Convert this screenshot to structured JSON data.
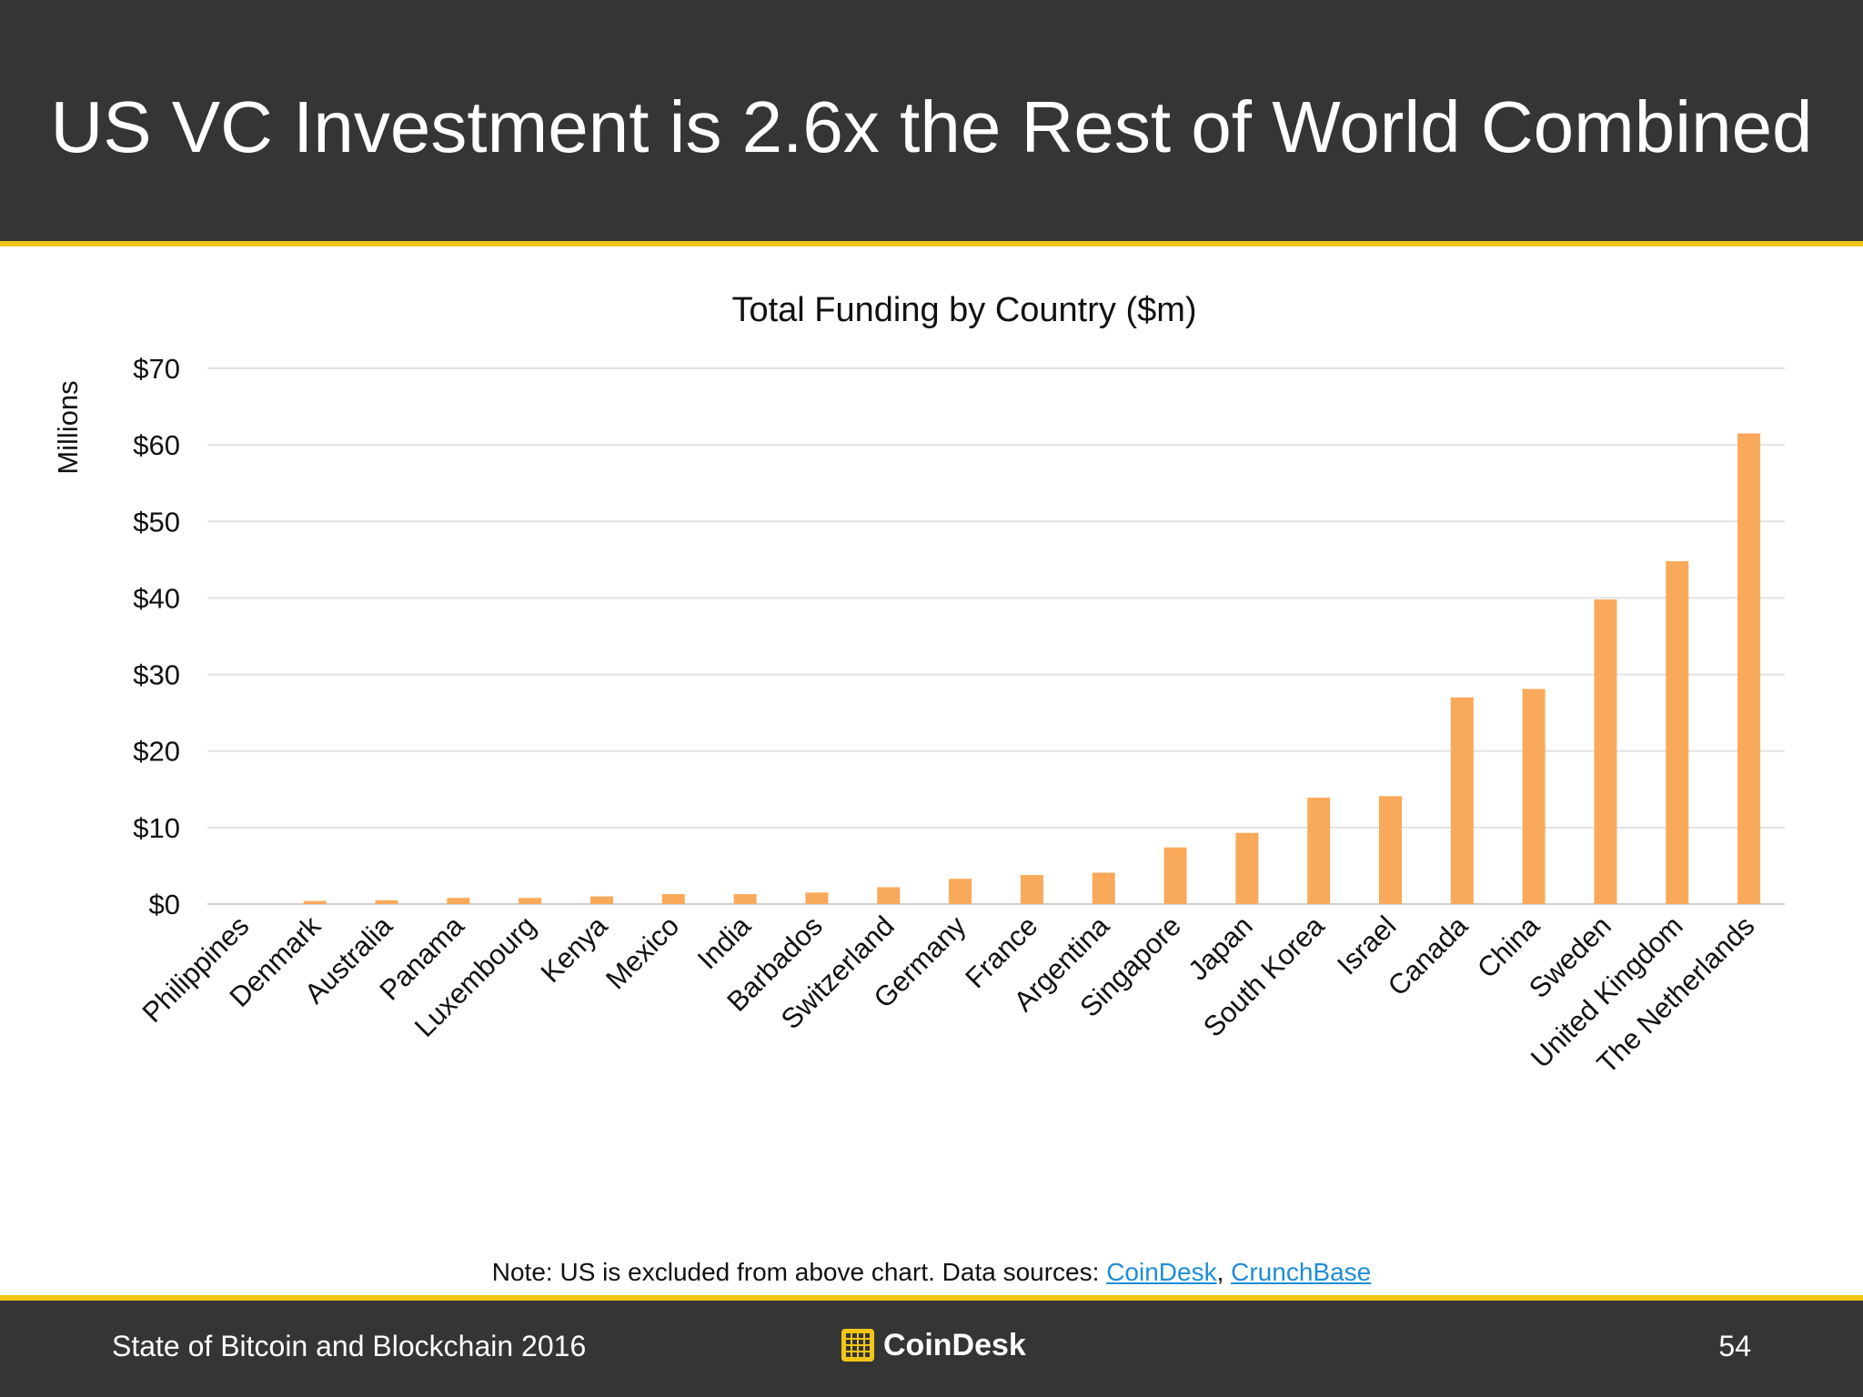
{
  "slide": {
    "title": "US VC Investment is 2.6x the Rest of World Combined"
  },
  "note": {
    "text": "Note: US is excluded from above chart. Data sources: ",
    "link1": "CoinDesk",
    "separator": ", ",
    "link2": "CrunchBase"
  },
  "footer": {
    "left": "State of Bitcoin and Blockchain 2016",
    "brand": "CoinDesk",
    "page": "54"
  },
  "colors": {
    "bar": "#f9a95a",
    "header": "#353535",
    "accent": "#f2c618",
    "link": "#1f8dd6"
  },
  "chart_data": {
    "type": "bar",
    "title": "Total Funding by Country ($m)",
    "ylabel": "Millions",
    "xlabel": "",
    "ylim": [
      0,
      70
    ],
    "yticks": [
      0,
      10,
      20,
      30,
      40,
      50,
      60,
      70
    ],
    "ytick_labels": [
      "$0",
      "$10",
      "$20",
      "$30",
      "$40",
      "$50",
      "$60",
      "$70"
    ],
    "grid": true,
    "legend": "none",
    "categories": [
      "Philippines",
      "Denmark",
      "Australia",
      "Panama",
      "Luxembourg",
      "Kenya",
      "Mexico",
      "India",
      "Barbados",
      "Switzerland",
      "Germany",
      "France",
      "Argentina",
      "Singapore",
      "Japan",
      "South Korea",
      "Israel",
      "Canada",
      "China",
      "Sweden",
      "United Kingdom",
      "The Netherlands"
    ],
    "values": [
      0,
      0.4,
      0.5,
      0.8,
      0.8,
      1.0,
      1.3,
      1.3,
      1.5,
      2.2,
      3.3,
      3.8,
      4.1,
      7.4,
      9.3,
      13.9,
      14.1,
      27.0,
      28.1,
      39.8,
      44.8,
      61.5
    ]
  }
}
